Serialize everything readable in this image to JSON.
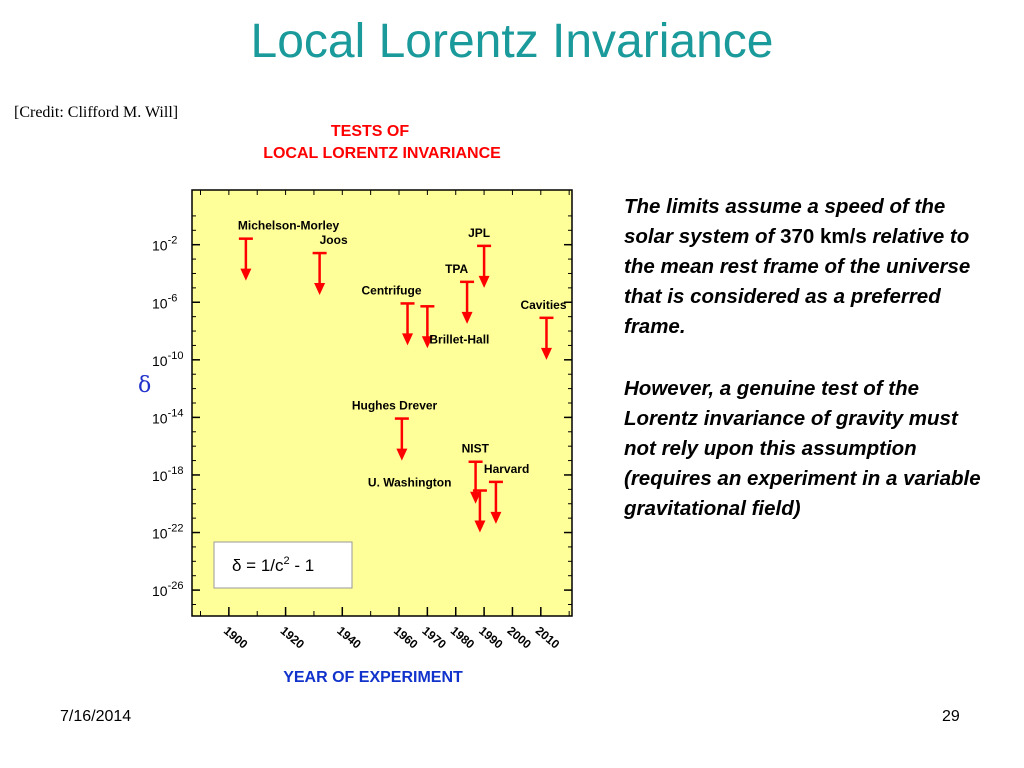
{
  "slide": {
    "title": "Local Lorentz Invariance",
    "credit": "[Credit: Clifford M. Will]",
    "date": "7/16/2014",
    "page_number": "29"
  },
  "text_panel": {
    "p1_before": "The limits assume a speed of the solar system of ",
    "p1_value": "370 km/s",
    "p1_after": " relative to the mean rest frame of the universe that is considered as a preferred frame.",
    "p2": "However, a genuine test of the Lorentz invariance of gravity must not rely upon this assumption (requires an experiment in a variable gravitational field)"
  },
  "chart_data": {
    "type": "scatter",
    "title_line1": "TESTS OF",
    "title_line2": "LOCAL LORENTZ INVARIANCE",
    "xlabel": "YEAR OF EXPERIMENT",
    "ylabel": "δ",
    "y_scale": "log",
    "xlim": [
      1887,
      2021
    ],
    "ylim_exponent": [
      -27.8,
      1.8
    ],
    "x_ticks": [
      1900,
      1920,
      1940,
      1960,
      1970,
      1980,
      1990,
      2000,
      2010
    ],
    "y_ticks": [
      {
        "exponent": -2,
        "label": "10",
        "sup": "-2"
      },
      {
        "exponent": -6,
        "label": "10",
        "sup": "-6"
      },
      {
        "exponent": -10,
        "label": "10",
        "sup": "-10"
      },
      {
        "exponent": -14,
        "label": "10",
        "sup": "-14"
      },
      {
        "exponent": -18,
        "label": "10",
        "sup": "-18"
      },
      {
        "exponent": -22,
        "label": "10",
        "sup": "-22"
      },
      {
        "exponent": -26,
        "label": "10",
        "sup": "-26"
      }
    ],
    "formula_box": {
      "text": "δ = 1/c",
      "sup": "2",
      "suffix": " - 1"
    },
    "plot_background": "#ffff99",
    "arrow_color": "#ff0000",
    "points": [
      {
        "name": "Michelson-Morley",
        "year": 1906,
        "log_delta": -4.5
      },
      {
        "name": "Joos",
        "year": 1932,
        "log_delta": -5.5
      },
      {
        "name": "Centrifuge",
        "year": 1963,
        "log_delta": -9.0
      },
      {
        "name": "Brillet-Hall",
        "year": 1970,
        "log_delta": -9.2
      },
      {
        "name": "TPA",
        "year": 1984,
        "log_delta": -7.5
      },
      {
        "name": "JPL",
        "year": 1990,
        "log_delta": -5.0
      },
      {
        "name": "Cavities",
        "year": 2012,
        "log_delta": -10.0
      },
      {
        "name": "Hughes Drever",
        "year": 1961,
        "log_delta": -17.0
      },
      {
        "name": "NIST",
        "year": 1987,
        "log_delta": -20.0
      },
      {
        "name": "Harvard",
        "year": 1991,
        "log_delta": -21.4
      },
      {
        "name": "U. Washington",
        "year": 1991,
        "log_delta": -22.0
      }
    ]
  }
}
